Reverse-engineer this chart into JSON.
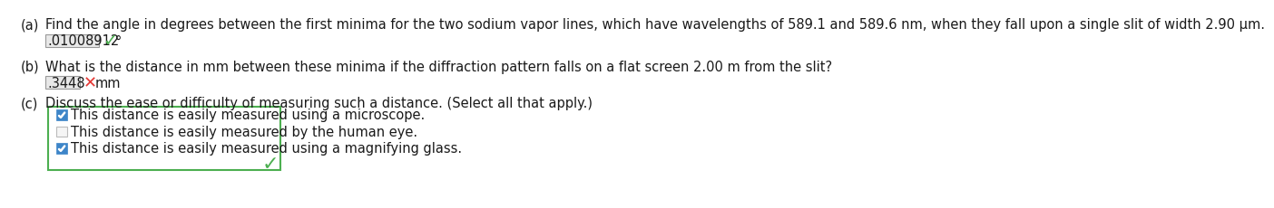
{
  "background_color": "#ffffff",
  "part_a": {
    "label": "(a)",
    "question": "Find the angle in degrees between the first minima for the two sodium vapor lines, which have wavelengths of 589.1 and 589.6 nm, when they fall upon a single slit of width 2.90 µm.",
    "answer_text": ".01008912",
    "answer_bg": "#e8e8e8",
    "check_color": "#4caf50",
    "unit": "°"
  },
  "part_b": {
    "label": "(b)",
    "question": "What is the distance in mm between these minima if the diffraction pattern falls on a flat screen 2.00 m from the slit?",
    "answer_text": ".3448",
    "answer_bg": "#e8e8e8",
    "x_color": "#e53935",
    "unit": "mm"
  },
  "part_c": {
    "label": "(c)",
    "question": "Discuss the ease or difficulty of measuring such a distance. (Select all that apply.)",
    "box_border_color": "#4caf50",
    "options": [
      {
        "text": "This distance is easily measured using a microscope.",
        "checked": true
      },
      {
        "text": "This distance is easily measured by the human eye.",
        "checked": false
      },
      {
        "text": "This distance is easily measured using a magnifying glass.",
        "checked": true
      }
    ],
    "check_color": "#4caf50",
    "checkbox_color": "#3d85c8"
  },
  "font_size_question": 10.5,
  "font_size_answer": 10.5,
  "font_size_label": 10.5,
  "text_color": "#1a1a1a"
}
